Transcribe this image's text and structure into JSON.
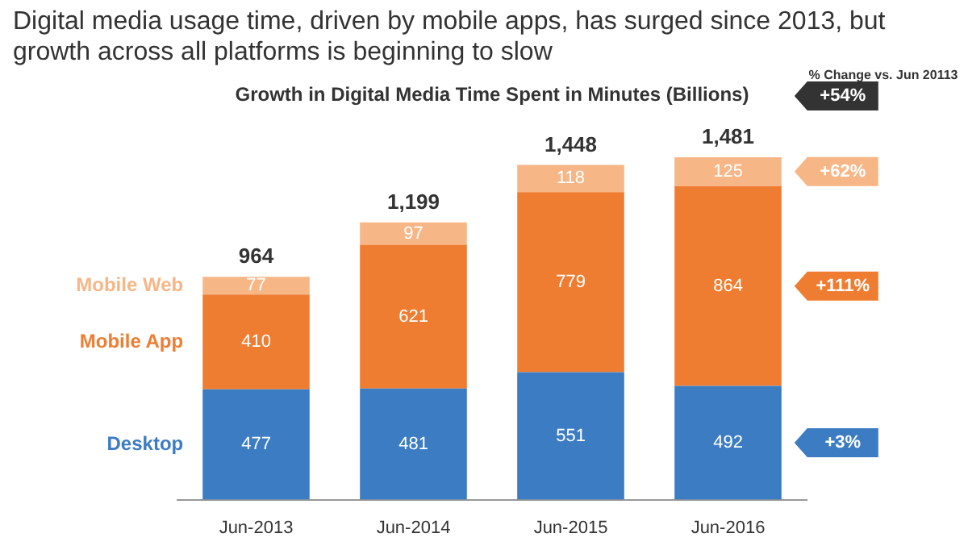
{
  "chart_data": {
    "type": "bar",
    "title": "Digital media usage time, driven by mobile apps, has surged since 2013, but growth across all platforms is beginning to slow",
    "subtitle": "Growth in Digital Media Time Spent in Minutes (Billions)",
    "categories": [
      "Jun-2013",
      "Jun-2014",
      "Jun-2015",
      "Jun-2016"
    ],
    "stacked": true,
    "data_labels": true,
    "legend": false,
    "grid": false,
    "tick_labels": "x",
    "series": [
      {
        "name": "Desktop",
        "color": "#3b7cc2",
        "values": [
          477,
          481,
          551,
          492
        ]
      },
      {
        "name": "Mobile App",
        "color": "#ef7d31",
        "values": [
          410,
          621,
          779,
          864
        ]
      },
      {
        "name": "Mobile Web",
        "color": "#f7b686",
        "values": [
          77,
          97,
          118,
          125
        ]
      }
    ],
    "totals": [
      "964",
      "1,199",
      "1,448",
      "1,481"
    ],
    "annotations": [
      "% Change vs. Jun 20113",
      "+54%",
      "+62%",
      "+111%",
      "+3%"
    ]
  }
}
